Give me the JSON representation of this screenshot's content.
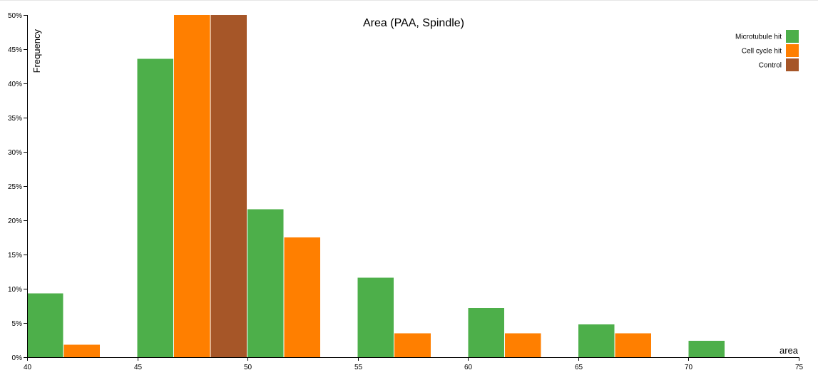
{
  "chart_data": {
    "type": "bar",
    "title": "Area (PAA, Spindle)",
    "xlabel": "area",
    "ylabel": "Frequency",
    "xlim": [
      40,
      75
    ],
    "ylim": [
      0,
      0.5
    ],
    "x_ticks": [
      40,
      45,
      50,
      55,
      60,
      65,
      70,
      75
    ],
    "y_ticks": [
      "0%",
      "5%",
      "10%",
      "15%",
      "20%",
      "25%",
      "30%",
      "35%",
      "40%",
      "45%",
      "50%"
    ],
    "bin_width": 5,
    "legend_position": "top-right",
    "series": [
      {
        "name": "Microtubule hit",
        "color": "#4daf4a",
        "bins": [
          {
            "x": 40,
            "value": 0.093
          },
          {
            "x": 45,
            "value": 0.436
          },
          {
            "x": 50,
            "value": 0.216
          },
          {
            "x": 55,
            "value": 0.116
          },
          {
            "x": 60,
            "value": 0.072
          },
          {
            "x": 65,
            "value": 0.048
          },
          {
            "x": 70,
            "value": 0.024
          }
        ]
      },
      {
        "name": "Cell cycle hit",
        "color": "#ff7f00",
        "bins": [
          {
            "x": 40,
            "value": 0.018
          },
          {
            "x": 45,
            "value": 0.522
          },
          {
            "x": 50,
            "value": 0.175
          },
          {
            "x": 55,
            "value": 0.035
          },
          {
            "x": 60,
            "value": 0.035
          },
          {
            "x": 65,
            "value": 0.035
          }
        ]
      },
      {
        "name": "Control",
        "color": "#a65628",
        "bins": [
          {
            "x": 45,
            "value": 0.522
          }
        ]
      }
    ]
  }
}
